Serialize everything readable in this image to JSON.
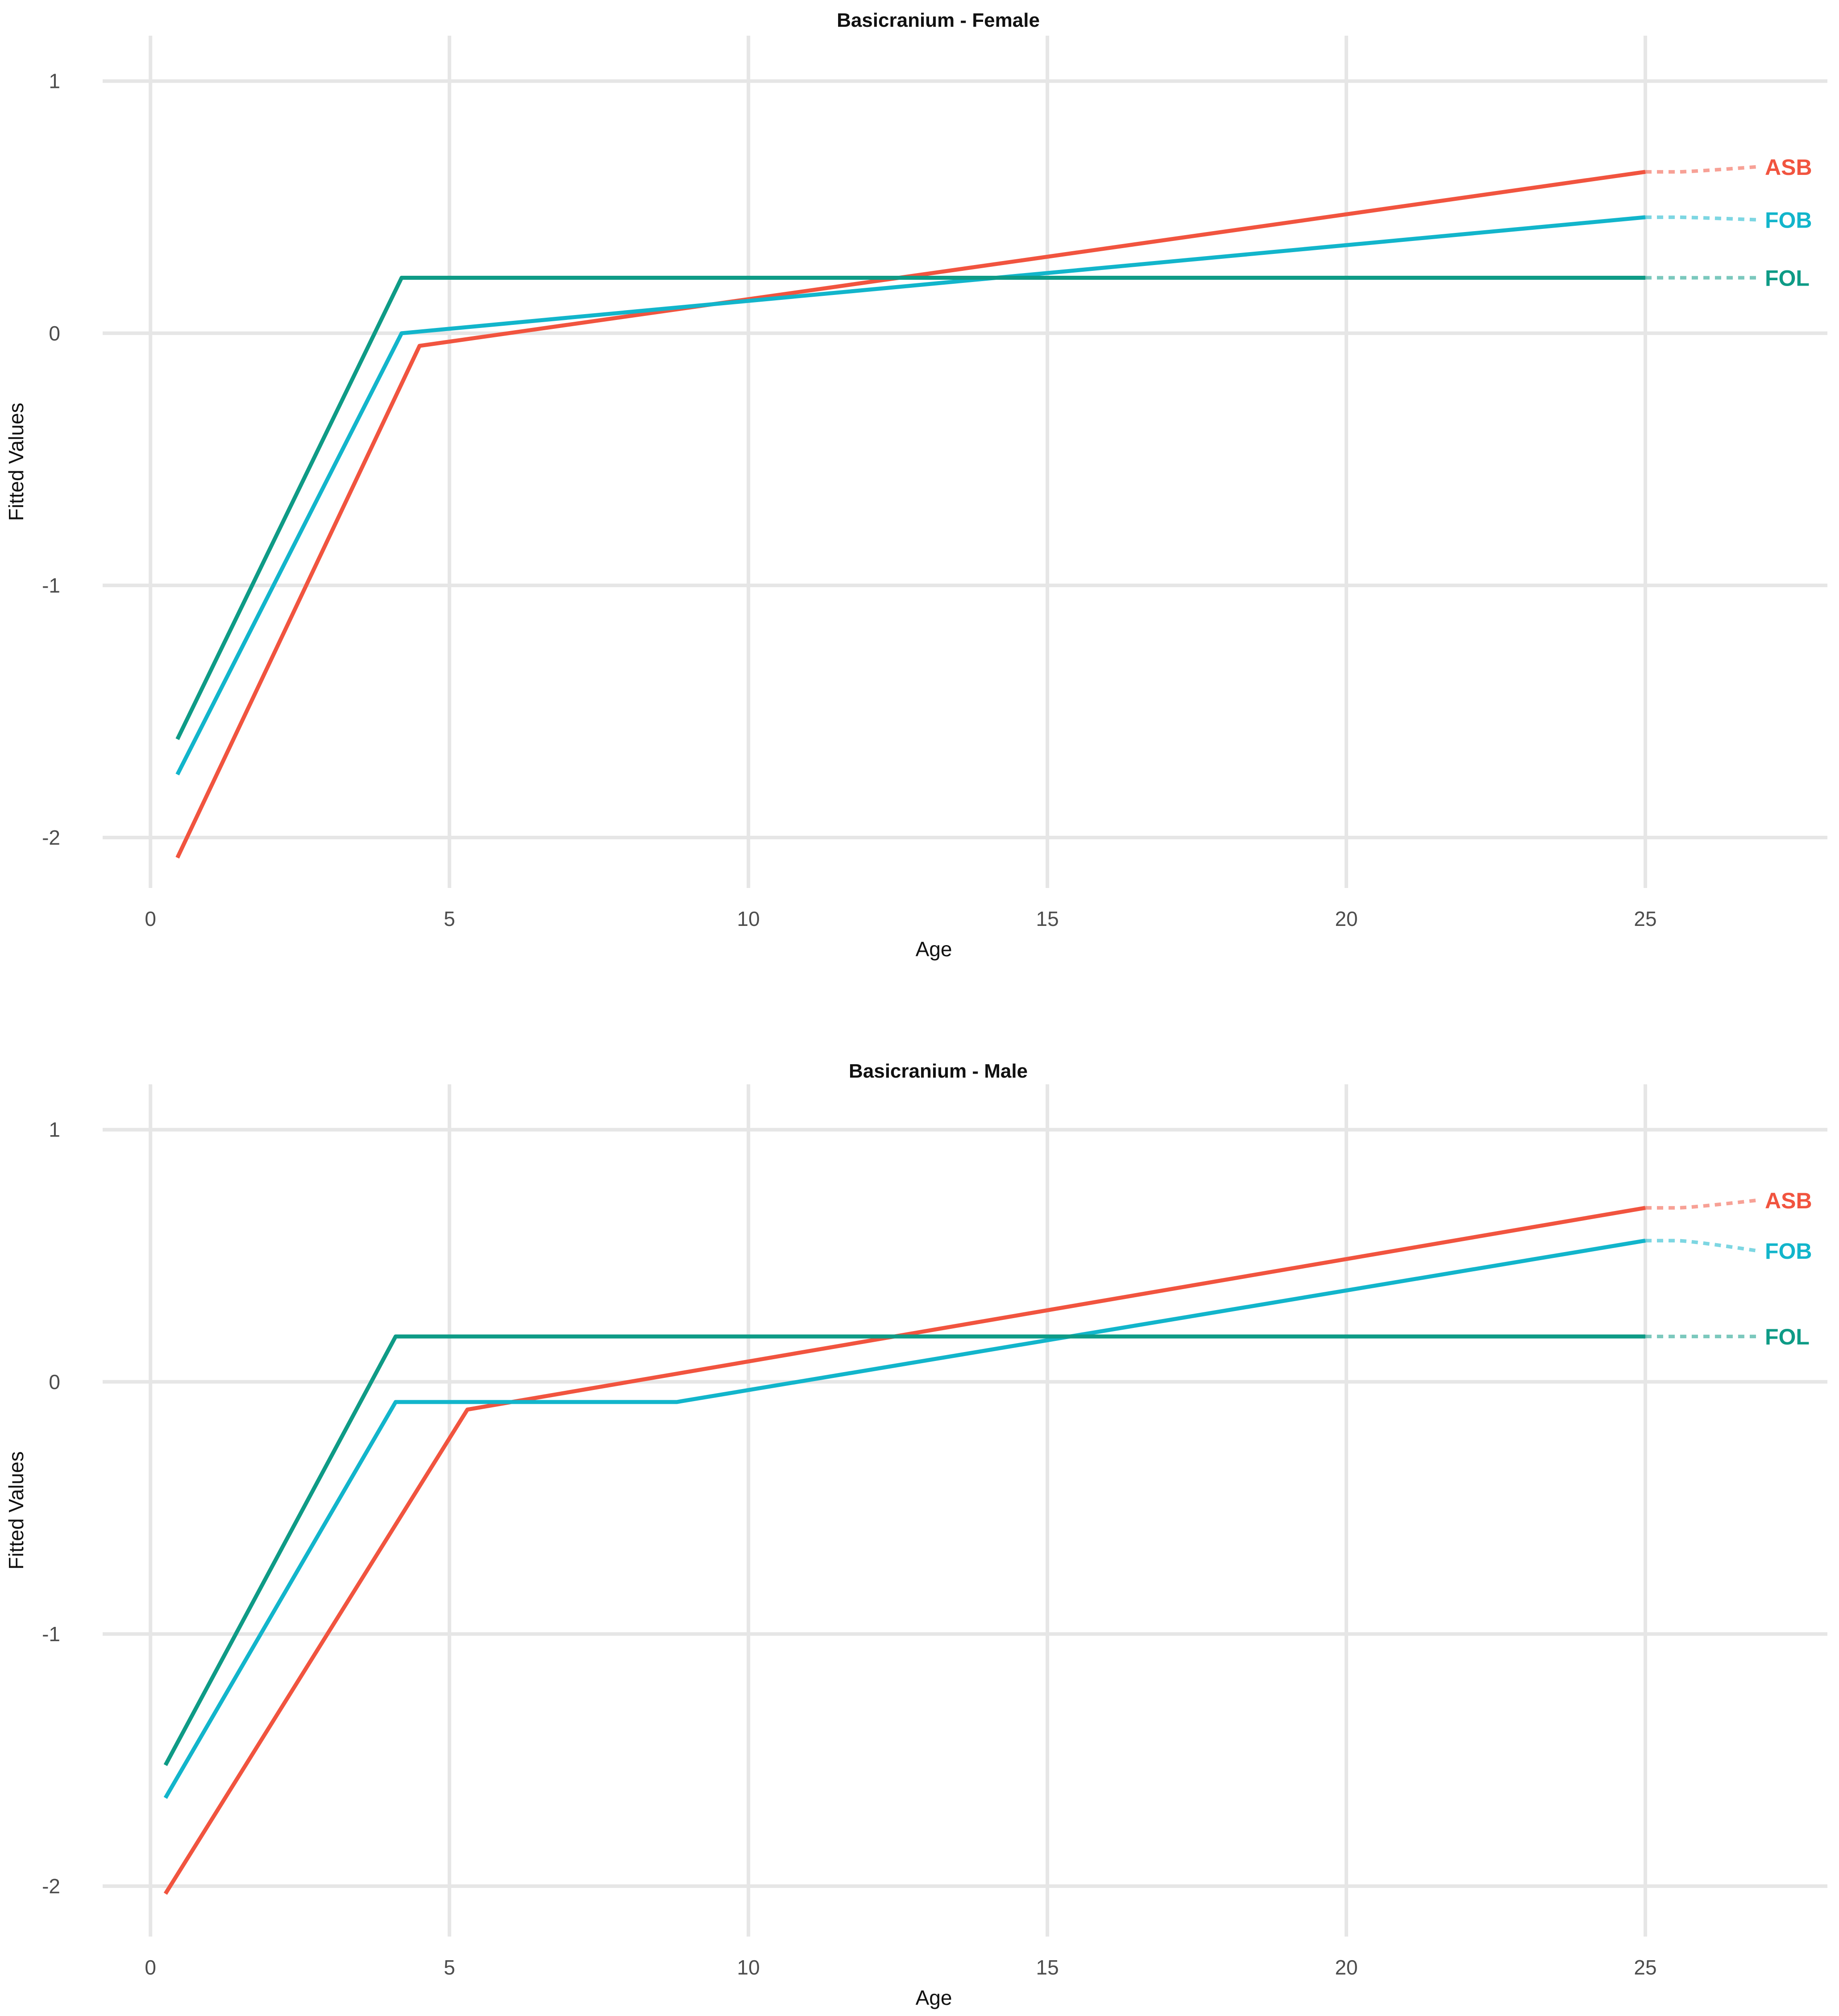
{
  "chart_data": [
    {
      "type": "line",
      "title": "Basicranium - Female",
      "xlabel": "Age",
      "ylabel": "Fitted Values",
      "xlim": [
        -0.8,
        27
      ],
      "ylim": [
        -2.2,
        1.18
      ],
      "xticks": [
        0,
        5,
        10,
        15,
        20,
        25
      ],
      "xtick_labels": [
        "0",
        "5",
        "10",
        "15",
        "20",
        "25"
      ],
      "yticks": [
        1,
        0,
        -1,
        -2
      ],
      "ytick_labels": [
        "1",
        "0",
        "-1",
        "-2"
      ],
      "grid": true,
      "legend": "direct labels at right end",
      "series": [
        {
          "name": "ASB",
          "color": "#F1543F",
          "label_y": 0.66,
          "points": [
            [
              0.45,
              -2.08
            ],
            [
              4.5,
              -0.05
            ],
            [
              25,
              0.64
            ]
          ]
        },
        {
          "name": "FOB",
          "color": "#12B5CB",
          "label_y": 0.45,
          "points": [
            [
              0.45,
              -1.75
            ],
            [
              4.2,
              0.0
            ],
            [
              25,
              0.46
            ]
          ]
        },
        {
          "name": "FOL",
          "color": "#0E9B86",
          "label_y": 0.22,
          "points": [
            [
              0.45,
              -1.61
            ],
            [
              4.2,
              0.22
            ],
            [
              25,
              0.22
            ]
          ]
        }
      ]
    },
    {
      "type": "line",
      "title": "Basicranium - Male",
      "xlabel": "Age",
      "ylabel": "Fitted Values",
      "xlim": [
        -0.8,
        27
      ],
      "ylim": [
        -2.2,
        1.18
      ],
      "xticks": [
        0,
        5,
        10,
        15,
        20,
        25
      ],
      "xtick_labels": [
        "0",
        "5",
        "10",
        "15",
        "20",
        "25"
      ],
      "yticks": [
        1,
        0,
        -1,
        -2
      ],
      "ytick_labels": [
        "1",
        "0",
        "-1",
        "-2"
      ],
      "grid": true,
      "legend": "direct labels at right end",
      "series": [
        {
          "name": "ASB",
          "color": "#F1543F",
          "label_y": 0.72,
          "points": [
            [
              0.25,
              -2.03
            ],
            [
              5.3,
              -0.11
            ],
            [
              25,
              0.69
            ]
          ]
        },
        {
          "name": "FOB",
          "color": "#12B5CB",
          "label_y": 0.52,
          "points": [
            [
              0.25,
              -1.65
            ],
            [
              4.1,
              -0.08
            ],
            [
              8.8,
              -0.08
            ],
            [
              25,
              0.56
            ]
          ]
        },
        {
          "name": "FOL",
          "color": "#0E9B86",
          "label_y": 0.18,
          "points": [
            [
              0.25,
              -1.52
            ],
            [
              4.1,
              0.18
            ],
            [
              25,
              0.18
            ]
          ]
        }
      ]
    }
  ]
}
